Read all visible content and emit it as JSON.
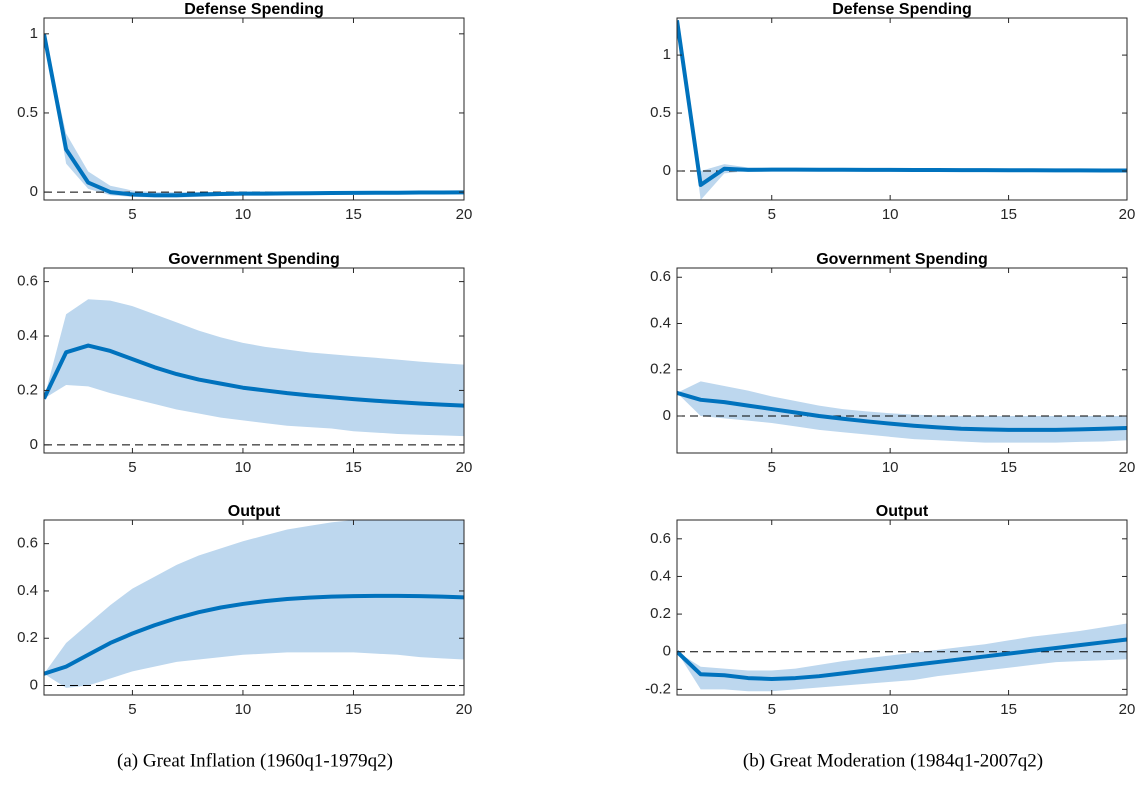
{
  "chart_data": [
    {
      "type": "line",
      "title": "Defense Spending",
      "x": [
        1,
        2,
        3,
        4,
        5,
        6,
        7,
        8,
        9,
        10,
        11,
        12,
        13,
        14,
        15,
        16,
        17,
        18,
        19,
        20
      ],
      "values": [
        1,
        0.27,
        0.06,
        0,
        -0.015,
        -0.02,
        -0.02,
        -0.015,
        -0.012,
        -0.01,
        -0.01,
        -0.008,
        -0.007,
        -0.006,
        -0.005,
        -0.004,
        -0.004,
        -0.003,
        -0.003,
        -0.002
      ],
      "lower": [
        1,
        0.18,
        0.02,
        -0.02,
        -0.03,
        -0.035,
        -0.035,
        -0.03,
        -0.025,
        -0.02,
        -0.02,
        -0.018,
        -0.016,
        -0.014,
        -0.012,
        -0.01,
        -0.01,
        -0.009,
        -0.008,
        -0.008
      ],
      "upper": [
        1,
        0.37,
        0.13,
        0.04,
        0.01,
        0,
        0,
        0,
        0.002,
        0.003,
        0.003,
        0.004,
        0.004,
        0.004,
        0.004,
        0.004,
        0.004,
        0.004,
        0.004,
        0.004
      ],
      "color": "#0072bd",
      "band_color": "#bdd7ee",
      "zero_line": true,
      "xlim": [
        1,
        20
      ],
      "xticks": [
        5,
        10,
        15,
        20
      ],
      "ylim": [
        -0.05,
        1.1
      ],
      "yticks": [
        0,
        0.5,
        1
      ]
    },
    {
      "type": "line",
      "title": "Government Spending",
      "x": [
        1,
        2,
        3,
        4,
        5,
        6,
        7,
        8,
        9,
        10,
        11,
        12,
        13,
        14,
        15,
        16,
        17,
        18,
        19,
        20
      ],
      "values": [
        0.17,
        0.34,
        0.365,
        0.345,
        0.315,
        0.285,
        0.26,
        0.24,
        0.225,
        0.21,
        0.2,
        0.19,
        0.182,
        0.175,
        0.168,
        0.162,
        0.157,
        0.152,
        0.148,
        0.144
      ],
      "lower": [
        0.17,
        0.22,
        0.215,
        0.19,
        0.17,
        0.15,
        0.13,
        0.115,
        0.1,
        0.09,
        0.08,
        0.07,
        0.065,
        0.06,
        0.05,
        0.045,
        0.04,
        0.037,
        0.035,
        0.032
      ],
      "upper": [
        0.17,
        0.48,
        0.535,
        0.53,
        0.51,
        0.48,
        0.45,
        0.42,
        0.395,
        0.375,
        0.36,
        0.35,
        0.34,
        0.333,
        0.326,
        0.32,
        0.313,
        0.306,
        0.3,
        0.295
      ],
      "color": "#0072bd",
      "band_color": "#bdd7ee",
      "zero_line": true,
      "xlim": [
        1,
        20
      ],
      "xticks": [
        5,
        10,
        15,
        20
      ],
      "ylim": [
        -0.03,
        0.65
      ],
      "yticks": [
        0,
        0.2,
        0.4,
        0.6
      ]
    },
    {
      "type": "line",
      "title": "Output",
      "x": [
        1,
        2,
        3,
        4,
        5,
        6,
        7,
        8,
        9,
        10,
        11,
        12,
        13,
        14,
        15,
        16,
        17,
        18,
        19,
        20
      ],
      "values": [
        0.05,
        0.08,
        0.13,
        0.18,
        0.22,
        0.255,
        0.285,
        0.31,
        0.33,
        0.345,
        0.357,
        0.366,
        0.372,
        0.376,
        0.378,
        0.379,
        0.379,
        0.378,
        0.376,
        0.373
      ],
      "lower": [
        0.05,
        -0.01,
        0,
        0.03,
        0.06,
        0.08,
        0.1,
        0.11,
        0.12,
        0.13,
        0.135,
        0.14,
        0.14,
        0.14,
        0.14,
        0.135,
        0.13,
        0.12,
        0.115,
        0.11
      ],
      "upper": [
        0.05,
        0.18,
        0.26,
        0.34,
        0.41,
        0.46,
        0.51,
        0.55,
        0.58,
        0.61,
        0.635,
        0.66,
        0.675,
        0.69,
        0.7,
        0.7,
        0.7,
        0.7,
        0.7,
        0.7
      ],
      "color": "#0072bd",
      "band_color": "#bdd7ee",
      "zero_line": true,
      "xlim": [
        1,
        20
      ],
      "xticks": [
        5,
        10,
        15,
        20
      ],
      "ylim": [
        -0.04,
        0.7
      ],
      "yticks": [
        0,
        0.2,
        0.4,
        0.6
      ]
    },
    {
      "type": "line",
      "title": "Defense Spending",
      "x": [
        1,
        2,
        3,
        4,
        5,
        6,
        7,
        8,
        9,
        10,
        11,
        12,
        13,
        14,
        15,
        16,
        17,
        18,
        19,
        20
      ],
      "values": [
        1.3,
        -0.12,
        0.02,
        0.01,
        0.012,
        0.012,
        0.011,
        0.011,
        0.01,
        0.01,
        0.009,
        0.009,
        0.008,
        0.008,
        0.007,
        0.007,
        0.006,
        0.006,
        0.005,
        0.005
      ],
      "lower": [
        1.3,
        -0.25,
        -0.02,
        0,
        0,
        0,
        0,
        0,
        0,
        0,
        0,
        0,
        0,
        0,
        0,
        0,
        0,
        0,
        0,
        0
      ],
      "upper": [
        1.3,
        0,
        0.06,
        0.03,
        0.025,
        0.022,
        0.02,
        0.02,
        0.02,
        0.02,
        0.019,
        0.018,
        0.017,
        0.016,
        0.015,
        0.014,
        0.013,
        0.012,
        0.011,
        0.01
      ],
      "color": "#0072bd",
      "band_color": "#bdd7ee",
      "zero_line": true,
      "xlim": [
        1,
        20
      ],
      "xticks": [
        5,
        10,
        15,
        20
      ],
      "ylim": [
        -0.25,
        1.32
      ],
      "yticks": [
        0,
        0.5,
        1
      ]
    },
    {
      "type": "line",
      "title": "Government Spending",
      "x": [
        1,
        2,
        3,
        4,
        5,
        6,
        7,
        8,
        9,
        10,
        11,
        12,
        13,
        14,
        15,
        16,
        17,
        18,
        19,
        20
      ],
      "values": [
        0.1,
        0.07,
        0.06,
        0.045,
        0.03,
        0.015,
        0,
        -0.012,
        -0.023,
        -0.033,
        -0.042,
        -0.049,
        -0.055,
        -0.058,
        -0.06,
        -0.06,
        -0.06,
        -0.058,
        -0.055,
        -0.052
      ],
      "lower": [
        0.1,
        0,
        -0.01,
        -0.02,
        -0.03,
        -0.045,
        -0.06,
        -0.07,
        -0.08,
        -0.09,
        -0.1,
        -0.105,
        -0.11,
        -0.115,
        -0.115,
        -0.115,
        -0.115,
        -0.112,
        -0.11,
        -0.105
      ],
      "upper": [
        0.1,
        0.15,
        0.13,
        0.11,
        0.085,
        0.065,
        0.045,
        0.03,
        0.02,
        0.012,
        0.006,
        0.002,
        0,
        0,
        0,
        0,
        0,
        0,
        0,
        0
      ],
      "color": "#0072bd",
      "band_color": "#bdd7ee",
      "zero_line": true,
      "xlim": [
        1,
        20
      ],
      "xticks": [
        5,
        10,
        15,
        20
      ],
      "ylim": [
        -0.16,
        0.64
      ],
      "yticks": [
        0,
        0.2,
        0.4,
        0.6
      ]
    },
    {
      "type": "line",
      "title": "Output",
      "x": [
        1,
        2,
        3,
        4,
        5,
        6,
        7,
        8,
        9,
        10,
        11,
        12,
        13,
        14,
        15,
        16,
        17,
        18,
        19,
        20
      ],
      "values": [
        0,
        -0.12,
        -0.125,
        -0.14,
        -0.145,
        -0.14,
        -0.13,
        -0.115,
        -0.1,
        -0.085,
        -0.07,
        -0.055,
        -0.04,
        -0.025,
        -0.01,
        0.005,
        0.02,
        0.035,
        0.05,
        0.065
      ],
      "lower": [
        0,
        -0.2,
        -0.2,
        -0.21,
        -0.21,
        -0.2,
        -0.19,
        -0.18,
        -0.17,
        -0.16,
        -0.15,
        -0.13,
        -0.115,
        -0.1,
        -0.085,
        -0.07,
        -0.055,
        -0.05,
        -0.045,
        -0.04
      ],
      "upper": [
        0,
        -0.08,
        -0.09,
        -0.1,
        -0.1,
        -0.09,
        -0.07,
        -0.05,
        -0.035,
        -0.02,
        -0.005,
        0.01,
        0.025,
        0.04,
        0.06,
        0.08,
        0.095,
        0.11,
        0.13,
        0.15
      ],
      "color": "#0072bd",
      "band_color": "#bdd7ee",
      "zero_line": true,
      "xlim": [
        1,
        20
      ],
      "xticks": [
        5,
        10,
        15,
        20
      ],
      "ylim": [
        -0.23,
        0.7
      ],
      "yticks": [
        -0.2,
        0,
        0.2,
        0.4,
        0.6
      ]
    }
  ],
  "captions": [
    "(a) Great Inflation (1960q1-1979q2)",
    "(b) Great Moderation (1984q1-2007q2)"
  ]
}
